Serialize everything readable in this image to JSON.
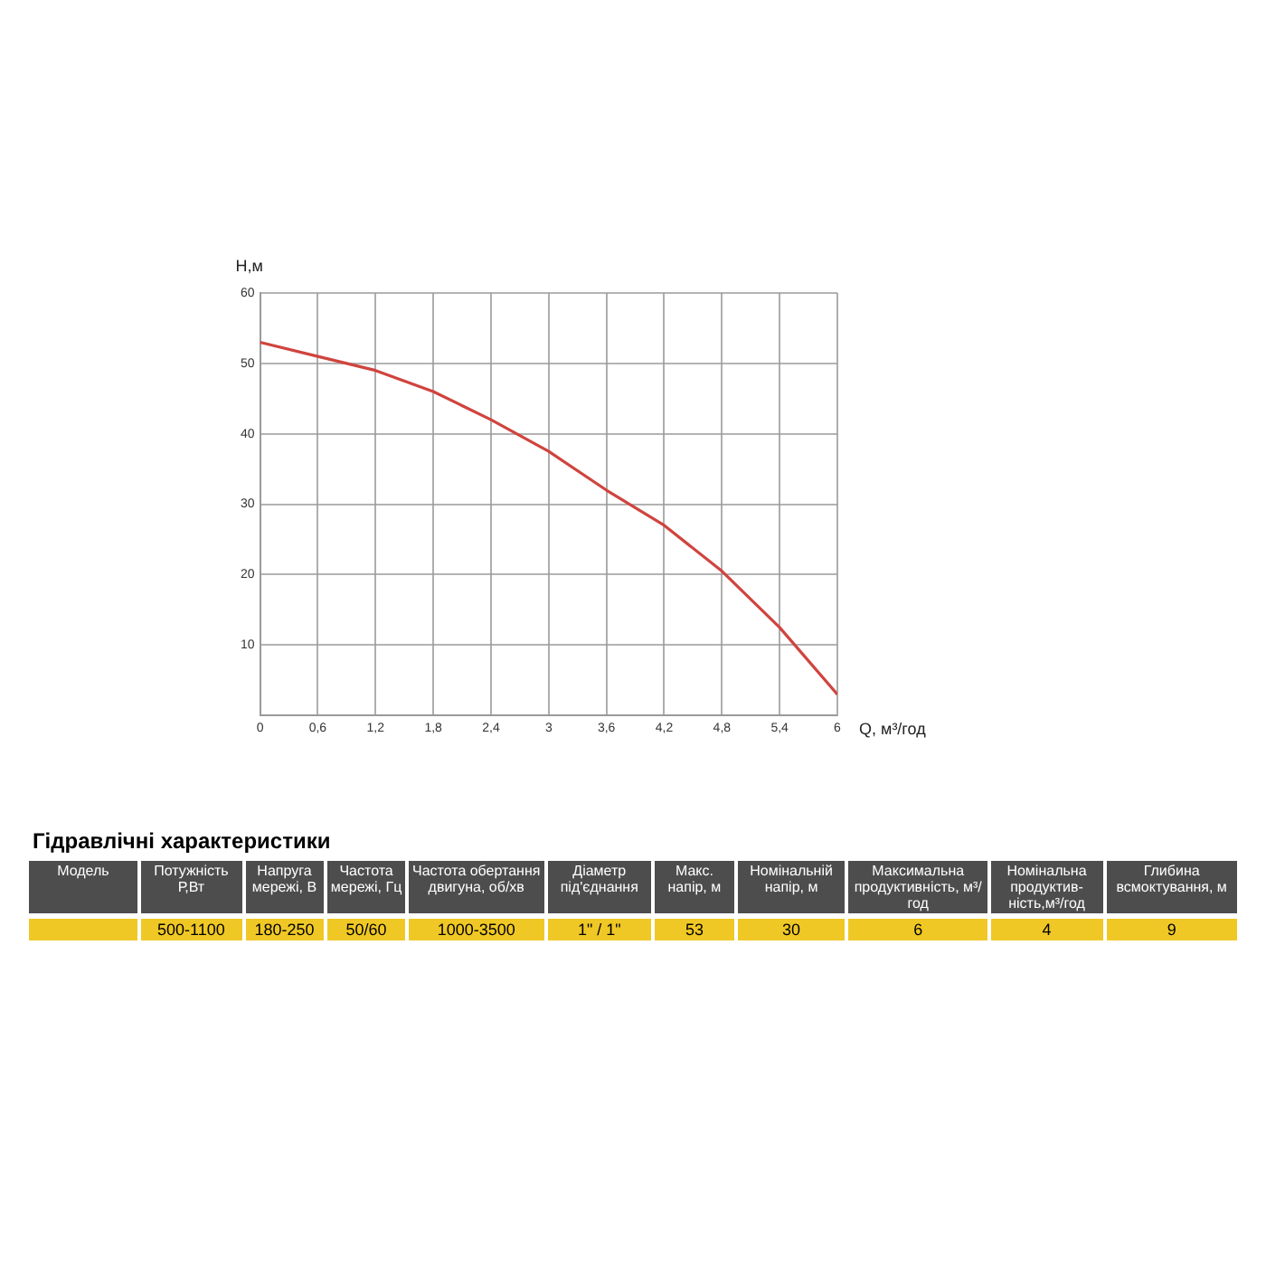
{
  "chart_data": {
    "type": "line",
    "xlabel": "Q, м³/год",
    "ylabel": "H,м",
    "x": [
      0,
      0.6,
      1.2,
      1.8,
      2.4,
      3,
      3.6,
      4.2,
      4.8,
      5.4,
      6
    ],
    "series": [
      {
        "color": "#d0443e",
        "values": [
          53,
          51,
          49,
          46,
          42,
          37.5,
          32,
          27,
          20.5,
          12.5,
          3
        ]
      }
    ],
    "xlim": [
      0,
      6
    ],
    "xticks": [
      0,
      {
        "value": 0.6,
        "label": "0,6"
      },
      {
        "value": 1.2,
        "label": "1,2"
      },
      {
        "value": 1.8,
        "label": "1,8"
      },
      {
        "value": 2.4,
        "label": "2,4"
      },
      3,
      {
        "value": 3.6,
        "label": "3,6"
      },
      {
        "value": 4.2,
        "label": "4,2"
      },
      {
        "value": 4.8,
        "label": "4,8"
      },
      {
        "value": 5.4,
        "label": "5,4"
      },
      6
    ],
    "ylim": [
      0,
      60
    ],
    "yticks": [
      {
        "value": 0,
        "label": null
      },
      10,
      20,
      30,
      40,
      50,
      60
    ],
    "grid": true,
    "legend": false,
    "marker": "none",
    "line_style": "solid",
    "annotations": [
      "Гідравлічні характеристики",
      "Модель",
      "Потужність Р,Вт",
      "Напруга мережі, В",
      "Частота мережі, Гц",
      "Частота обертання двигуна, об/хв",
      "Діаметр під'єднання",
      "Макс. напір, м",
      "Номінальній напір, м",
      "Максимальна продуктивність, м³/год",
      "Номінальна продуктив-ність,м³/год",
      "Глибина всмоктування, м",
      "500-1100",
      "180-250",
      "50/60",
      "1000-3500",
      "1\" / 1\"",
      "53",
      "30",
      "6",
      "4",
      "9"
    ]
  }
}
